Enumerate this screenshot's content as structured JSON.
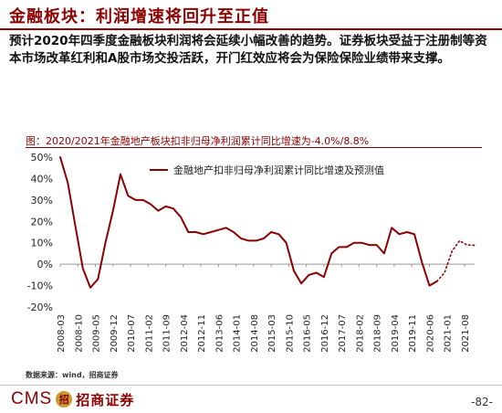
{
  "header": {
    "title": "金融板块：利润增速将回升至正值",
    "intro": "预计2020年四季度金融板块利润将会延续小幅改善的趋势。证券板块受益于注册制等资本市场改革红利和A股市场交投活跃，开门红效应将会为保险保险业绩带来支撑。"
  },
  "figure": {
    "caption": "图：2020/2021年金融地产板块扣非归母净利润累计同比增速为-4.0%/8.8%",
    "source": "数据来源：wind，招商证券"
  },
  "footer": {
    "logo_text": "CMS",
    "logo_mark": "招",
    "logo_cn": "招商证券",
    "page_number": "-82-"
  },
  "colors": {
    "accent": "#8b0000",
    "series": "#8b0000"
  },
  "chart_data": {
    "type": "line",
    "ylim": [
      -0.2,
      0.5
    ],
    "y_ticks": [
      "50%",
      "40%",
      "30%",
      "20%",
      "10%",
      "0%",
      "-10%",
      "-20%"
    ],
    "y_tick_values": [
      0.5,
      0.4,
      0.3,
      0.2,
      0.1,
      0.0,
      -0.1,
      -0.2
    ],
    "x_tick_labels": [
      "2008-03",
      "2008-10",
      "2009-05",
      "2009-12",
      "2010-07",
      "2011-02",
      "2011-09",
      "2012-04",
      "2012-11",
      "2013-06",
      "2014-01",
      "2014-08",
      "2015-03",
      "2015-10",
      "2016-05",
      "2016-12",
      "2017-07",
      "2018-02",
      "2018-09",
      "2019-04",
      "2019-11",
      "2020-06",
      "2021-01",
      "2021-08"
    ],
    "legend": {
      "label": "金融地产扣非归母净利润累计同比增速及预测值",
      "position": "top"
    },
    "grid": false,
    "series": [
      {
        "style": "solid",
        "points": [
          [
            "2008-03",
            0.5
          ],
          [
            "2008-06",
            0.38
          ],
          [
            "2008-09",
            0.18
          ],
          [
            "2008-12",
            -0.02
          ],
          [
            "2009-03",
            -0.11
          ],
          [
            "2009-06",
            -0.07
          ],
          [
            "2009-09",
            0.1
          ],
          [
            "2009-12",
            0.25
          ],
          [
            "2010-03",
            0.42
          ],
          [
            "2010-06",
            0.32
          ],
          [
            "2010-09",
            0.3
          ],
          [
            "2010-12",
            0.3
          ],
          [
            "2011-03",
            0.28
          ],
          [
            "2011-06",
            0.25
          ],
          [
            "2011-09",
            0.27
          ],
          [
            "2011-12",
            0.26
          ],
          [
            "2012-03",
            0.22
          ],
          [
            "2012-06",
            0.15
          ],
          [
            "2012-09",
            0.15
          ],
          [
            "2012-12",
            0.14
          ],
          [
            "2013-03",
            0.15
          ],
          [
            "2013-06",
            0.16
          ],
          [
            "2013-09",
            0.17
          ],
          [
            "2013-12",
            0.15
          ],
          [
            "2014-03",
            0.12
          ],
          [
            "2014-06",
            0.11
          ],
          [
            "2014-09",
            0.11
          ],
          [
            "2014-12",
            0.12
          ],
          [
            "2015-03",
            0.15
          ],
          [
            "2015-06",
            0.14
          ],
          [
            "2015-09",
            0.1
          ],
          [
            "2015-12",
            -0.03
          ],
          [
            "2016-03",
            -0.09
          ],
          [
            "2016-06",
            -0.05
          ],
          [
            "2016-09",
            -0.04
          ],
          [
            "2016-12",
            -0.06
          ],
          [
            "2017-03",
            0.05
          ],
          [
            "2017-06",
            0.08
          ],
          [
            "2017-09",
            0.08
          ],
          [
            "2017-12",
            0.1
          ],
          [
            "2018-03",
            0.1
          ],
          [
            "2018-06",
            0.09
          ],
          [
            "2018-09",
            0.09
          ],
          [
            "2018-12",
            0.05
          ],
          [
            "2019-03",
            0.17
          ],
          [
            "2019-06",
            0.14
          ],
          [
            "2019-09",
            0.15
          ],
          [
            "2019-12",
            0.14
          ],
          [
            "2020-03",
            0.01
          ],
          [
            "2020-06",
            -0.1
          ],
          [
            "2020-09",
            -0.08
          ]
        ]
      },
      {
        "style": "dotted",
        "points": [
          [
            "2020-09",
            -0.08
          ],
          [
            "2020-12",
            -0.04
          ],
          [
            "2021-03",
            0.06
          ],
          [
            "2021-06",
            0.11
          ],
          [
            "2021-09",
            0.09
          ],
          [
            "2021-12",
            0.088
          ]
        ]
      }
    ]
  }
}
